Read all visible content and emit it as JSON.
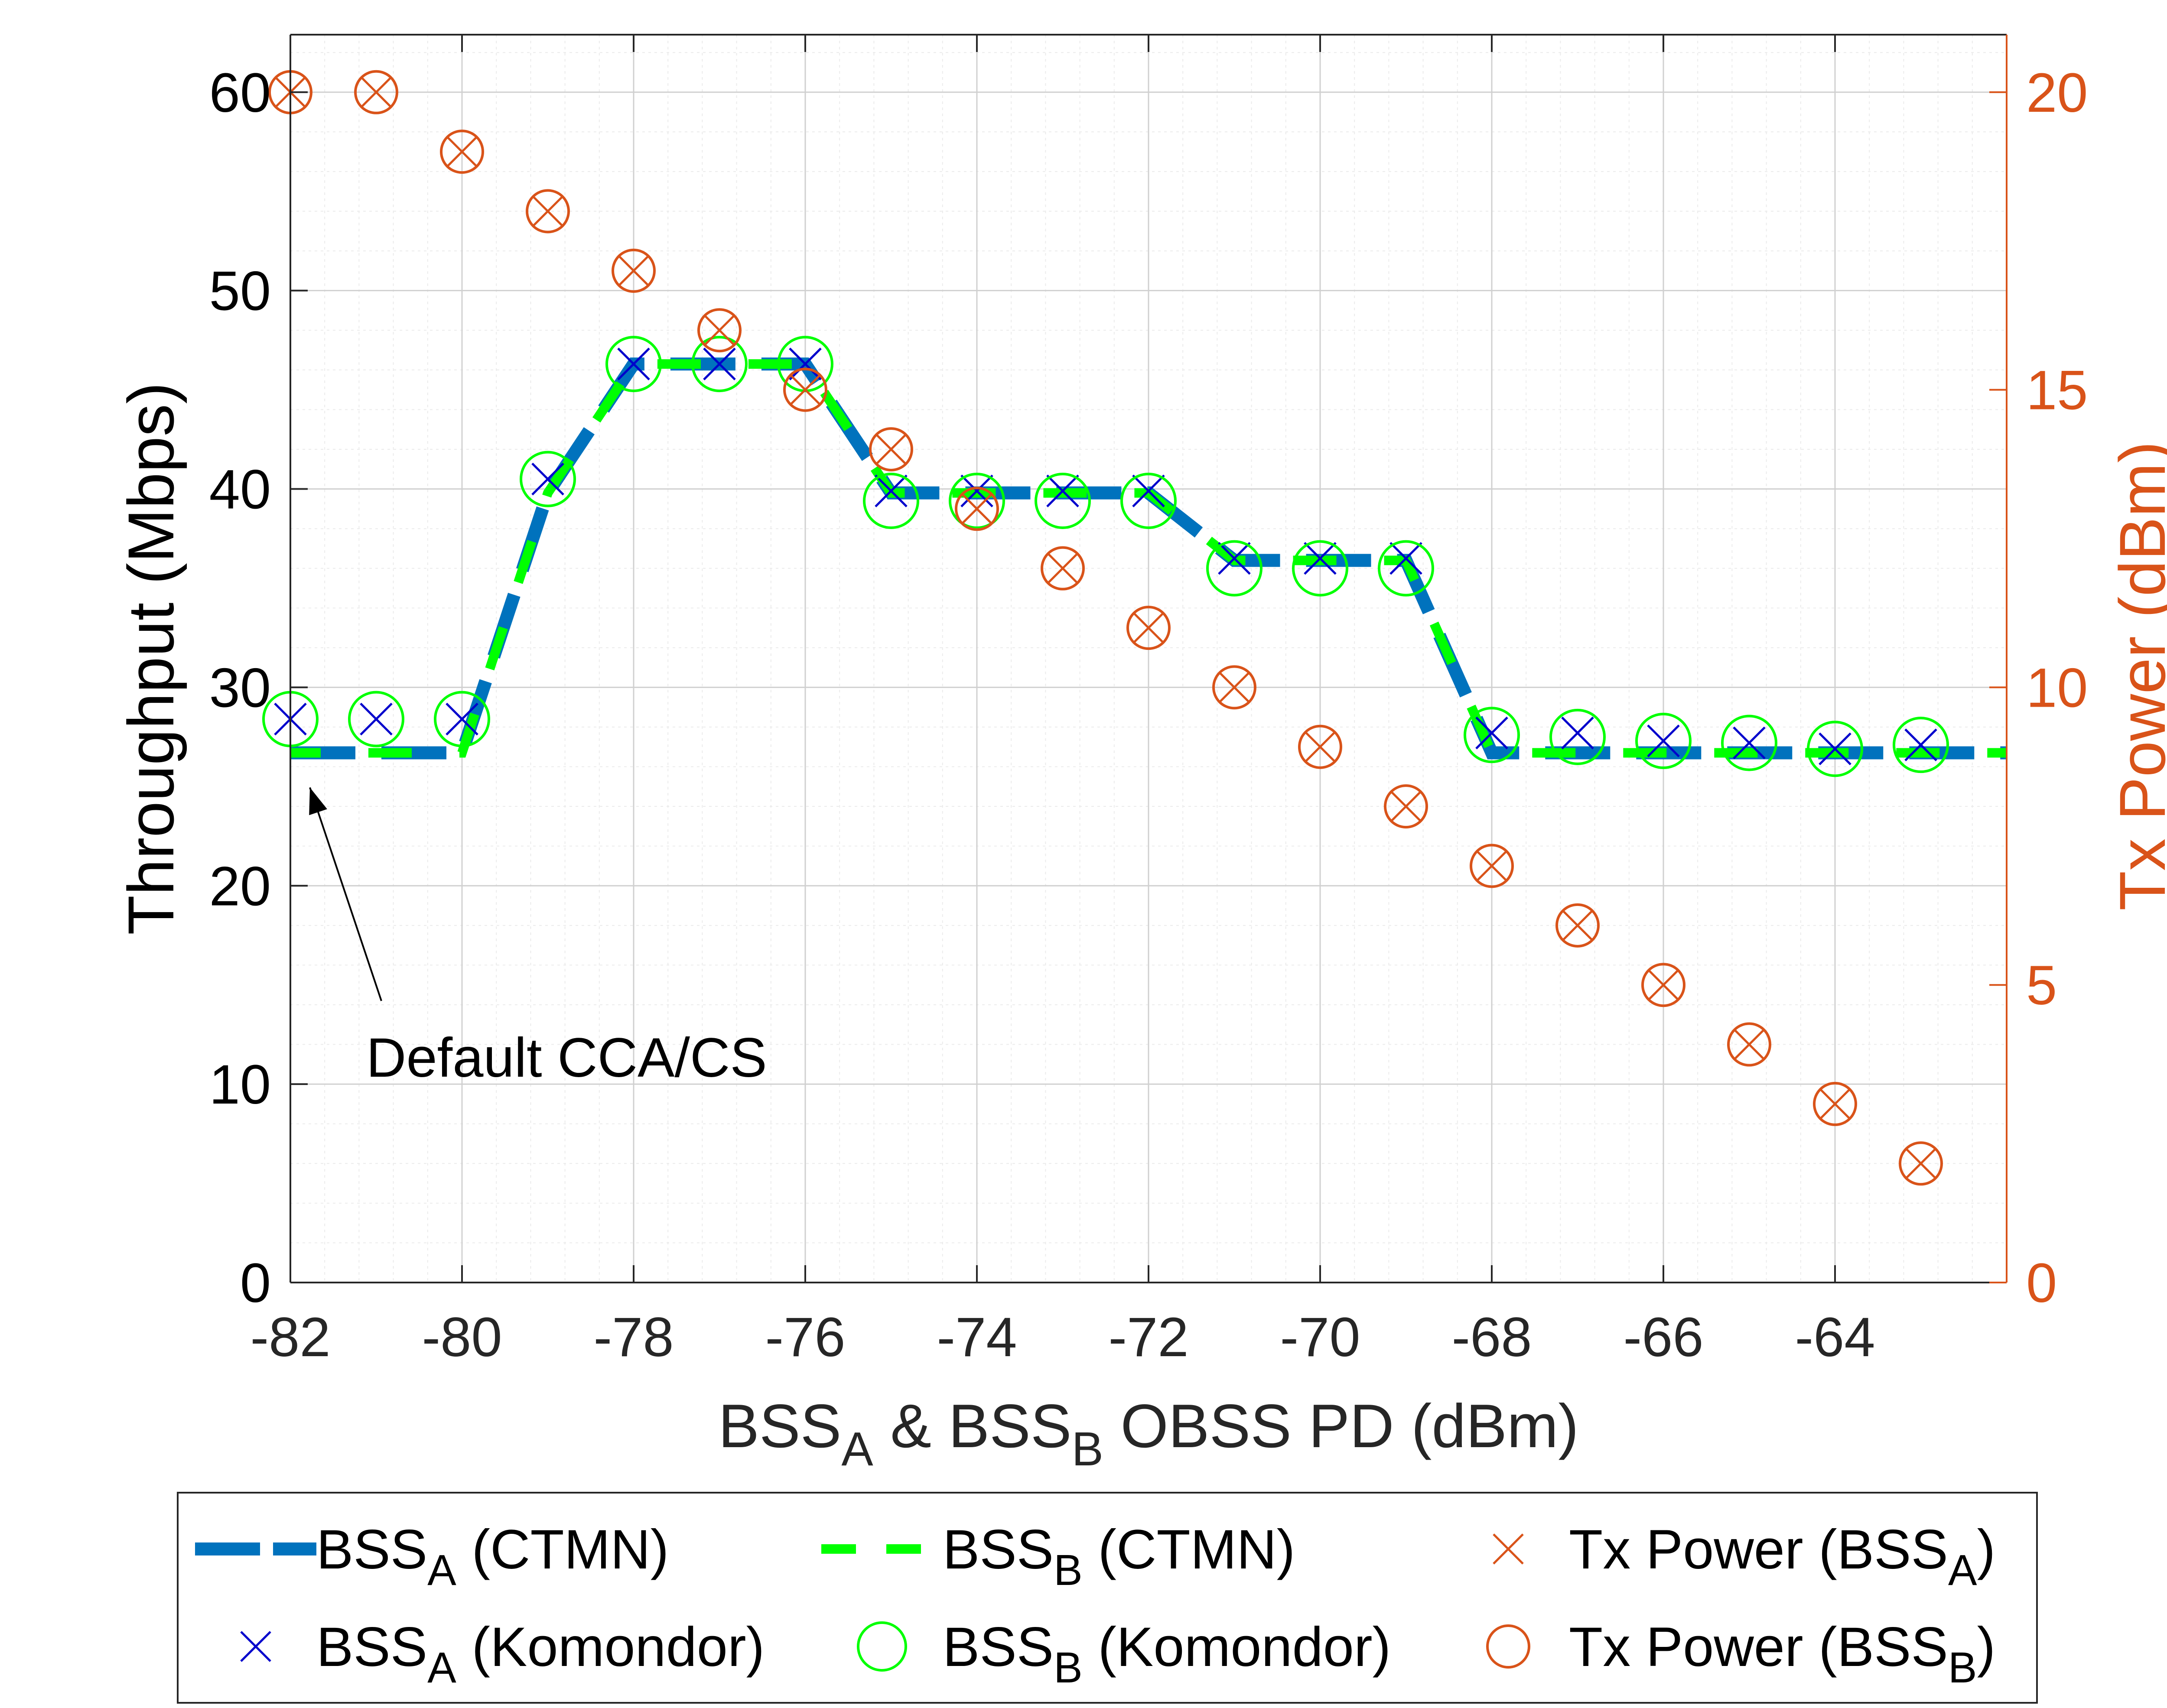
{
  "chart_data": {
    "type": "line",
    "title": "",
    "xlabel": {
      "main": "BSS",
      "sub1": "A",
      "mid": " & BSS",
      "sub2": "B",
      "tail": " OBSS PD (dBm)"
    },
    "ylabel_left": "Throughput (Mbps)",
    "ylabel_right": "Tx Power (dBm)",
    "xlim": [
      -82,
      -62
    ],
    "ylim_left": [
      0,
      60
    ],
    "ylim_right": [
      0,
      20
    ],
    "grid": true,
    "minor_grid": true,
    "x_ticks": [
      -82,
      -80,
      -78,
      -76,
      -74,
      -72,
      -70,
      -68,
      -66,
      -64
    ],
    "x_tick_labels": [
      "-82",
      "-80",
      "-78",
      "-76",
      "-74",
      "-72",
      "-70",
      "-68",
      "-66",
      "-64"
    ],
    "y_left_ticks": [
      0,
      10,
      20,
      30,
      40,
      50,
      60
    ],
    "y_left_tick_labels": [
      "0",
      "10",
      "20",
      "30",
      "40",
      "50",
      "60"
    ],
    "y_right_ticks": [
      0,
      5,
      10,
      15,
      20
    ],
    "y_right_tick_labels": [
      "0",
      "5",
      "10",
      "15",
      "20"
    ],
    "x": [
      -82,
      -81,
      -80,
      -79,
      -78,
      -77,
      -76,
      -75,
      -74,
      -73,
      -72,
      -71,
      -70,
      -69,
      -68,
      -67,
      -66,
      -65,
      -64,
      -63,
      -62
    ],
    "series": [
      {
        "name_main": "BSS",
        "name_sub": "A",
        "name_tail": " (CTMN)",
        "axis": "left",
        "style": "dashed-line",
        "color": "#0072BD",
        "values": [
          26.7,
          26.7,
          26.7,
          39.8,
          46.3,
          46.3,
          46.3,
          39.8,
          39.8,
          39.8,
          39.8,
          36.4,
          36.4,
          36.4,
          26.7,
          26.7,
          26.7,
          26.7,
          26.7,
          26.7,
          26.7
        ]
      },
      {
        "name_main": "BSS",
        "name_sub": "B",
        "name_tail": " (CTMN)",
        "axis": "left",
        "style": "dashed-line",
        "color": "#00FF00",
        "values": [
          26.7,
          26.7,
          26.7,
          39.8,
          46.3,
          46.3,
          46.3,
          39.8,
          39.8,
          39.8,
          39.8,
          36.4,
          36.4,
          36.4,
          26.7,
          26.7,
          26.7,
          26.7,
          26.7,
          26.7,
          26.7
        ]
      },
      {
        "name_main": "BSS",
        "name_sub": "A",
        "name_tail": " (Komondor)",
        "axis": "left",
        "style": "x-marker",
        "color": "#0000CC",
        "values": [
          28.4,
          28.4,
          28.4,
          40.5,
          46.3,
          46.3,
          46.3,
          39.9,
          39.9,
          39.9,
          39.9,
          36.5,
          36.5,
          36.5,
          27.7,
          27.7,
          27.3,
          27.2,
          26.9,
          27.1,
          null
        ]
      },
      {
        "name_main": "BSS",
        "name_sub": "B",
        "name_tail": " (Komondor)",
        "axis": "left",
        "style": "o-marker",
        "color": "#00FF00",
        "values": [
          28.4,
          28.4,
          28.4,
          40.5,
          46.3,
          46.3,
          46.3,
          39.4,
          39.4,
          39.4,
          39.4,
          36.0,
          36.0,
          36.0,
          27.6,
          27.5,
          27.3,
          27.2,
          26.9,
          27.1,
          null
        ]
      },
      {
        "name_main": "Tx Power (BSS",
        "name_sub": "A",
        "name_tail": ")",
        "axis": "right",
        "style": "x-marker",
        "color": "#D95319",
        "values": [
          20,
          20,
          19,
          18,
          17,
          16,
          15,
          14,
          13,
          12,
          11,
          10,
          9,
          8,
          7,
          6,
          5,
          4,
          3,
          2,
          null
        ]
      },
      {
        "name_main": "Tx Power (BSS",
        "name_sub": "B",
        "name_tail": ")",
        "axis": "right",
        "style": "o-marker",
        "color": "#D95319",
        "values": [
          20,
          20,
          19,
          18,
          17,
          16,
          15,
          14,
          13,
          12,
          11,
          10,
          9,
          8,
          7,
          6,
          5,
          4,
          3,
          2,
          null
        ]
      }
    ],
    "annotation": {
      "text": "Default CCA/CS",
      "points_to_x": -82,
      "points_to_y": 26.7
    },
    "legend_placement": "below-plot"
  }
}
